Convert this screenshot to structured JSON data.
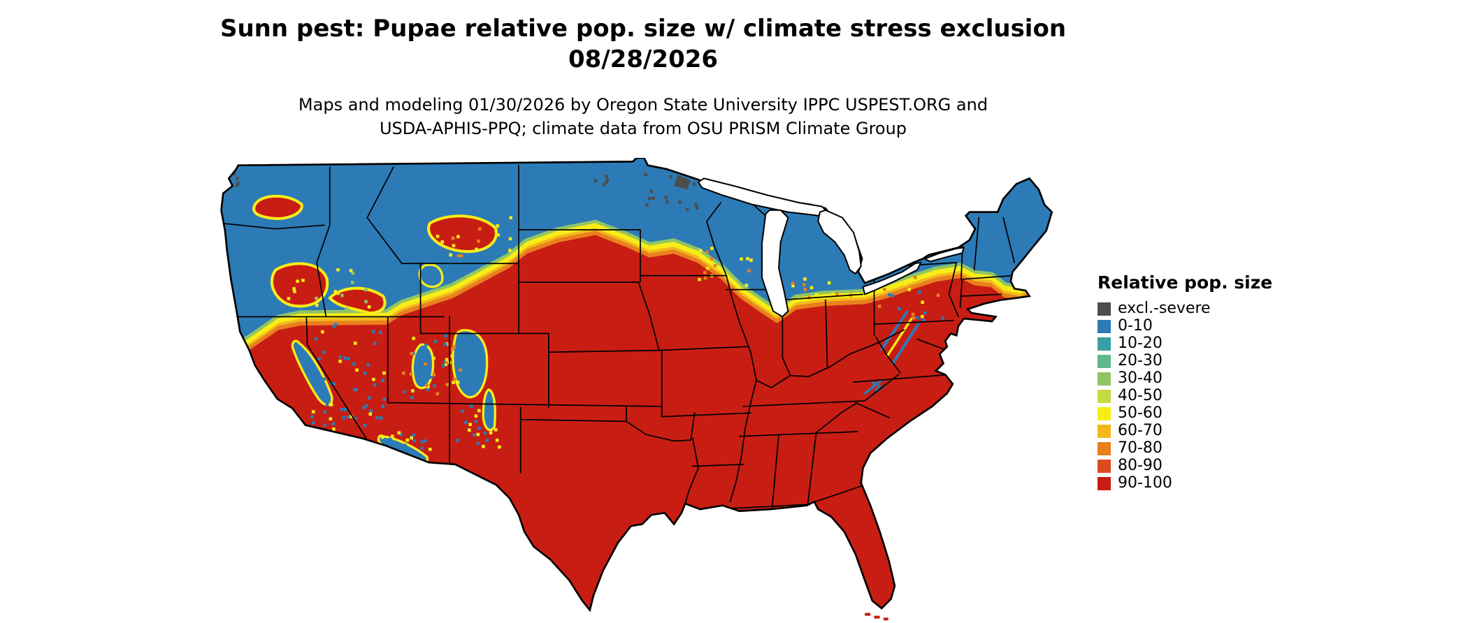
{
  "header": {
    "title_line1": "Sunn pest: Pupae relative pop. size w/ climate stress exclusion",
    "title_line2": "08/28/2026",
    "caption_line1": "Maps and modeling 01/30/2026 by Oregon State University IPPC USPEST.ORG and",
    "caption_line2": "USDA-APHIS-PPQ; climate data from OSU PRISM Climate Group"
  },
  "legend": {
    "title": "Relative pop. size",
    "items": [
      {
        "label": "excl.-severe",
        "color": "#4d4d4d"
      },
      {
        "label": "0-10",
        "color": "#2c7bb6"
      },
      {
        "label": "10-20",
        "color": "#38a0a5"
      },
      {
        "label": "20-30",
        "color": "#5fb889"
      },
      {
        "label": "30-40",
        "color": "#91c564"
      },
      {
        "label": "40-50",
        "color": "#c6da42"
      },
      {
        "label": "50-60",
        "color": "#f8ed17"
      },
      {
        "label": "60-70",
        "color": "#f2b91d"
      },
      {
        "label": "70-80",
        "color": "#e9801e"
      },
      {
        "label": "80-90",
        "color": "#dc4a20"
      },
      {
        "label": "90-100",
        "color": "#c81d13"
      }
    ]
  },
  "map": {
    "region": "Contiguous United States",
    "dominant_category_south": "90-100",
    "dominant_category_north": "0-10",
    "excluded_category": "excl.-severe",
    "water_color": "#ffffff",
    "boundary_color": "#000000"
  }
}
